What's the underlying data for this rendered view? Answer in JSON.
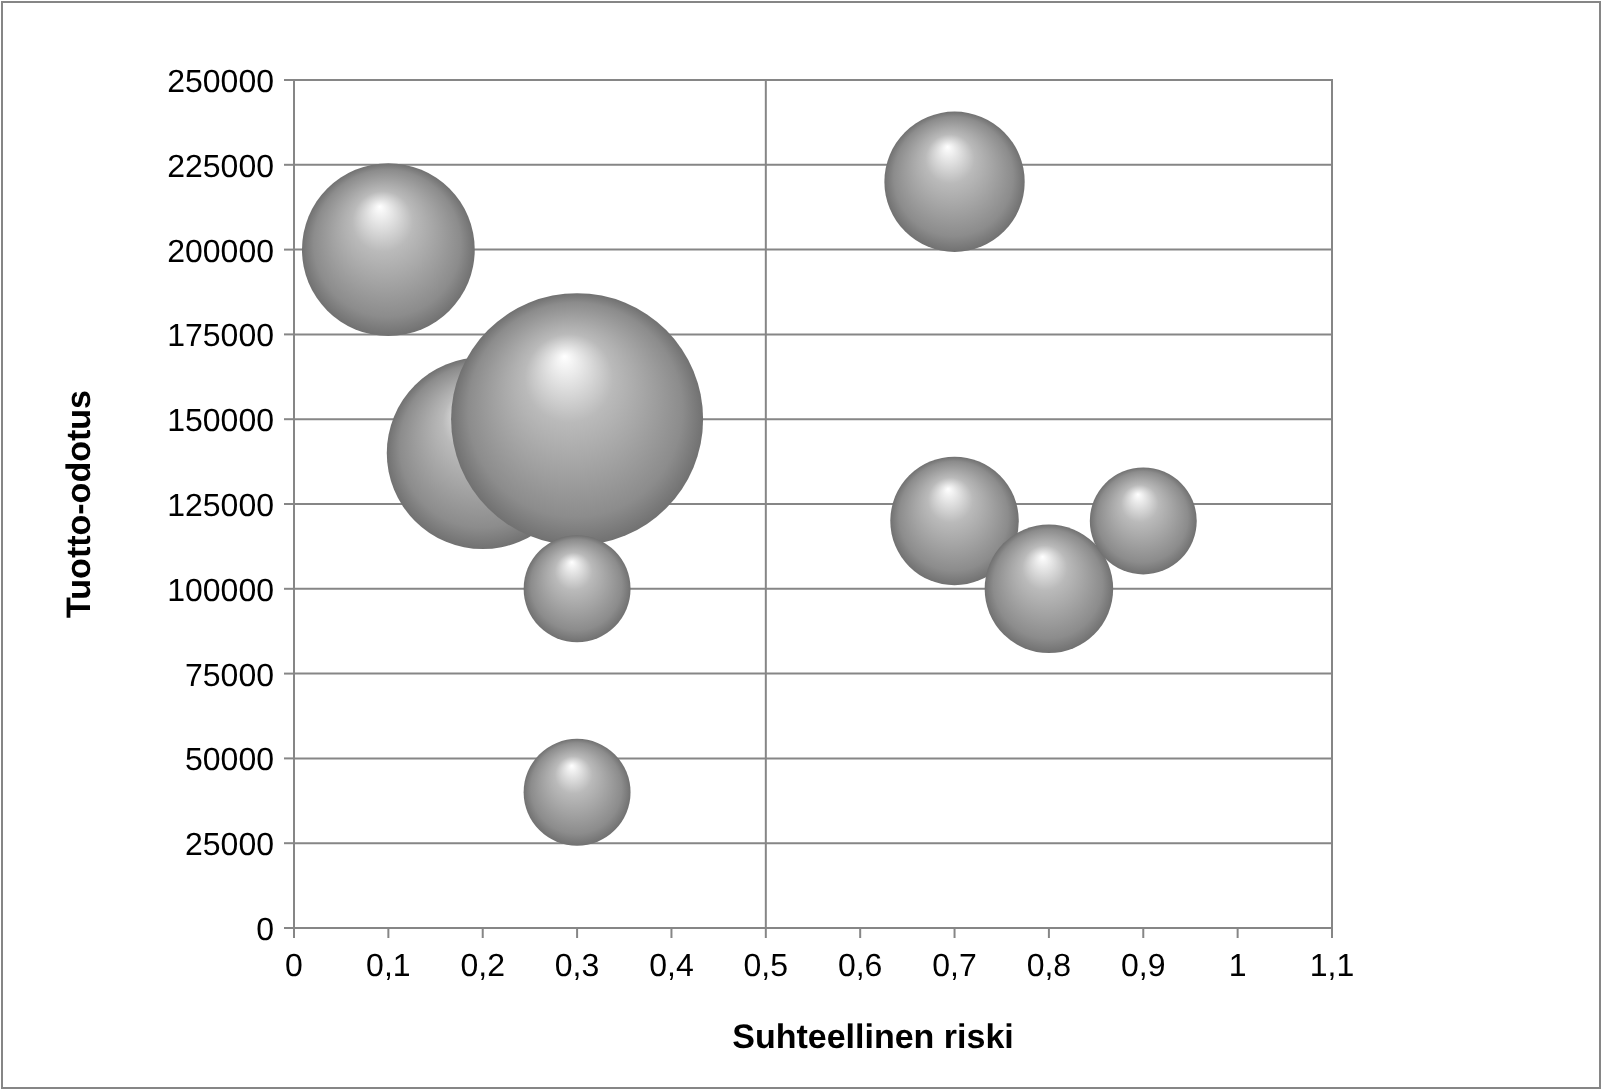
{
  "chart_data": {
    "type": "bubble",
    "xlabel": "Suhteellinen riski",
    "ylabel": "Tuotto-odotus",
    "x": [
      0.1,
      0.2,
      0.3,
      0.3,
      0.3,
      0.7,
      0.7,
      0.8,
      0.9
    ],
    "values": [
      200000,
      140000,
      150000,
      100000,
      40000,
      220000,
      120000,
      100000,
      120000
    ],
    "sizes": [
      0.47,
      0.58,
      1,
      0.18,
      0.18,
      0.31,
      0.26,
      0.26,
      0.18
    ],
    "color": "#8c8c8c",
    "xlim": [
      0,
      1.1
    ],
    "xticks": [
      0,
      {
        "value": 0.1,
        "label": "0,1"
      },
      {
        "value": 0.2,
        "label": "0,2"
      },
      {
        "value": 0.3,
        "label": "0,3"
      },
      {
        "value": 0.4,
        "label": "0,4"
      },
      {
        "value": 0.5,
        "label": "0,5"
      },
      {
        "value": 0.6,
        "label": "0,6"
      },
      {
        "value": 0.7,
        "label": "0,7"
      },
      {
        "value": 0.8,
        "label": "0,8"
      },
      {
        "value": 0.9,
        "label": "0,9"
      },
      1,
      {
        "value": 1.1,
        "label": "1,1"
      }
    ],
    "ylim": [
      0,
      250000
    ],
    "yticks": [
      0,
      25000,
      50000,
      75000,
      100000,
      125000,
      150000,
      175000,
      200000,
      225000,
      250000
    ],
    "ref_lines": [
      {
        "axis": "x",
        "value": 0.5,
        "color": "#868686"
      }
    ],
    "grid": "y"
  }
}
